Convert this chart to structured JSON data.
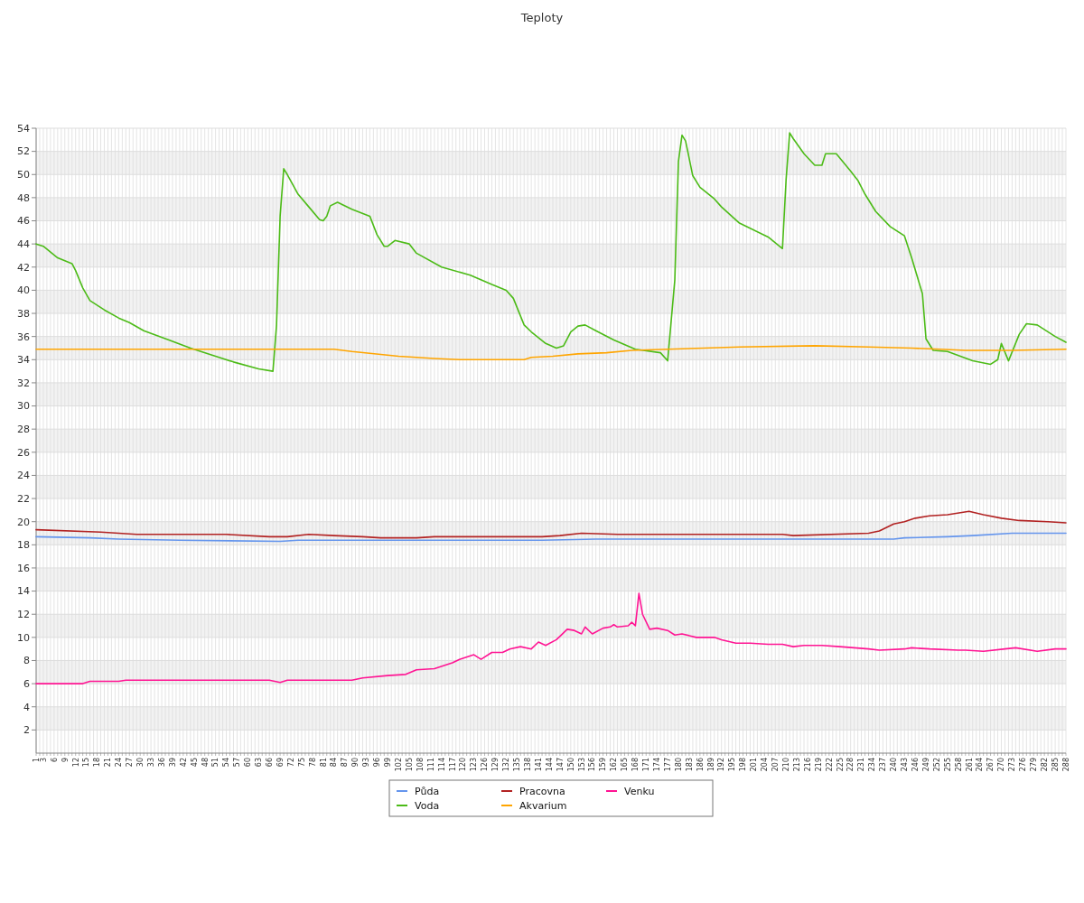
{
  "chart_data": {
    "type": "line",
    "title": "Teploty",
    "grid": true,
    "legend": "bottom",
    "xlim": [
      1,
      288
    ],
    "ylim": [
      0,
      54
    ],
    "yticks": [
      2,
      4,
      6,
      8,
      10,
      12,
      14,
      16,
      18,
      20,
      22,
      24,
      26,
      28,
      30,
      32,
      34,
      36,
      38,
      40,
      42,
      44,
      46,
      48,
      50,
      52,
      54
    ],
    "xticks": [
      1,
      {
        "value": 2,
        "label": null
      },
      3,
      {
        "value": 4,
        "label": null
      },
      {
        "value": 5,
        "label": null
      },
      6,
      {
        "value": 7,
        "label": null
      },
      {
        "value": 8,
        "label": null
      },
      9,
      {
        "value": 10,
        "label": null
      },
      {
        "value": 11,
        "label": null
      },
      12,
      {
        "value": 13,
        "label": null
      },
      {
        "value": 14,
        "label": null
      },
      15,
      {
        "value": 16,
        "label": null
      },
      {
        "value": 17,
        "label": null
      },
      18,
      {
        "value": 19,
        "label": null
      },
      {
        "value": 20,
        "label": null
      },
      21,
      {
        "value": 22,
        "label": null
      },
      {
        "value": 23,
        "label": null
      },
      24,
      {
        "value": 25,
        "label": null
      },
      {
        "value": 26,
        "label": null
      },
      27,
      {
        "value": 28,
        "label": null
      },
      {
        "value": 29,
        "label": null
      },
      30,
      {
        "value": 31,
        "label": null
      },
      {
        "value": 32,
        "label": null
      },
      33,
      {
        "value": 34,
        "label": null
      },
      {
        "value": 35,
        "label": null
      },
      36,
      {
        "value": 37,
        "label": null
      },
      {
        "value": 38,
        "label": null
      },
      39,
      {
        "value": 40,
        "label": null
      },
      {
        "value": 41,
        "label": null
      },
      42,
      {
        "value": 43,
        "label": null
      },
      {
        "value": 44,
        "label": null
      },
      45,
      {
        "value": 46,
        "label": null
      },
      {
        "value": 47,
        "label": null
      },
      48,
      {
        "value": 49,
        "label": null
      },
      {
        "value": 50,
        "label": null
      },
      51,
      {
        "value": 52,
        "label": null
      },
      {
        "value": 53,
        "label": null
      },
      54,
      {
        "value": 55,
        "label": null
      },
      {
        "value": 56,
        "label": null
      },
      57,
      {
        "value": 58,
        "label": null
      },
      {
        "value": 59,
        "label": null
      },
      60,
      {
        "value": 61,
        "label": null
      },
      {
        "value": 62,
        "label": null
      },
      63,
      {
        "value": 64,
        "label": null
      },
      {
        "value": 65,
        "label": null
      },
      66,
      {
        "value": 67,
        "label": null
      },
      {
        "value": 68,
        "label": null
      },
      69,
      {
        "value": 70,
        "label": null
      },
      {
        "value": 71,
        "label": null
      },
      72,
      {
        "value": 73,
        "label": null
      },
      {
        "value": 74,
        "label": null
      },
      75,
      {
        "value": 76,
        "label": null
      },
      {
        "value": 77,
        "label": null
      },
      78,
      {
        "value": 79,
        "label": null
      },
      {
        "value": 80,
        "label": null
      },
      81,
      {
        "value": 82,
        "label": null
      },
      {
        "value": 83,
        "label": null
      },
      84,
      {
        "value": 85,
        "label": null
      },
      {
        "value": 86,
        "label": null
      },
      87,
      {
        "value": 88,
        "label": null
      },
      {
        "value": 89,
        "label": null
      },
      90,
      {
        "value": 91,
        "label": null
      },
      {
        "value": 92,
        "label": null
      },
      93,
      {
        "value": 94,
        "label": null
      },
      {
        "value": 95,
        "label": null
      },
      96,
      {
        "value": 97,
        "label": null
      },
      {
        "value": 98,
        "label": null
      },
      99,
      {
        "value": 100,
        "label": null
      },
      {
        "value": 101,
        "label": null
      },
      102,
      {
        "value": 103,
        "label": null
      },
      {
        "value": 104,
        "label": null
      },
      105,
      {
        "value": 106,
        "label": null
      },
      {
        "value": 107,
        "label": null
      },
      108,
      {
        "value": 109,
        "label": null
      },
      {
        "value": 110,
        "label": null
      },
      111,
      {
        "value": 112,
        "label": null
      },
      {
        "value": 113,
        "label": null
      },
      114,
      {
        "value": 115,
        "label": null
      },
      {
        "value": 116,
        "label": null
      },
      117,
      {
        "value": 118,
        "label": null
      },
      {
        "value": 119,
        "label": null
      },
      120,
      {
        "value": 121,
        "label": null
      },
      {
        "value": 122,
        "label": null
      },
      123,
      {
        "value": 124,
        "label": null
      },
      {
        "value": 125,
        "label": null
      },
      126,
      {
        "value": 127,
        "label": null
      },
      {
        "value": 128,
        "label": null
      },
      129,
      {
        "value": 130,
        "label": null
      },
      {
        "value": 131,
        "label": null
      },
      132,
      {
        "value": 133,
        "label": null
      },
      {
        "value": 134,
        "label": null
      },
      135,
      {
        "value": 136,
        "label": null
      },
      {
        "value": 137,
        "label": null
      },
      138,
      {
        "value": 139,
        "label": null
      },
      {
        "value": 140,
        "label": null
      },
      141,
      {
        "value": 142,
        "label": null
      },
      {
        "value": 143,
        "label": null
      },
      144,
      {
        "value": 145,
        "label": null
      },
      {
        "value": 146,
        "label": null
      },
      147,
      {
        "value": 148,
        "label": null
      },
      {
        "value": 149,
        "label": null
      },
      150,
      {
        "value": 151,
        "label": null
      },
      {
        "value": 152,
        "label": null
      },
      153,
      {
        "value": 154,
        "label": null
      },
      {
        "value": 155,
        "label": null
      },
      156,
      {
        "value": 157,
        "label": null
      },
      {
        "value": 158,
        "label": null
      },
      159,
      {
        "value": 160,
        "label": null
      },
      {
        "value": 161,
        "label": null
      },
      162,
      {
        "value": 163,
        "label": null
      },
      {
        "value": 164,
        "label": null
      },
      165,
      {
        "value": 166,
        "label": null
      },
      {
        "value": 167,
        "label": null
      },
      168,
      {
        "value": 169,
        "label": null
      },
      {
        "value": 170,
        "label": null
      },
      171,
      {
        "value": 172,
        "label": null
      },
      {
        "value": 173,
        "label": null
      },
      174,
      {
        "value": 175,
        "label": null
      },
      {
        "value": 176,
        "label": null
      },
      177,
      {
        "value": 178,
        "label": null
      },
      {
        "value": 179,
        "label": null
      },
      180,
      {
        "value": 181,
        "label": null
      },
      {
        "value": 182,
        "label": null
      },
      183,
      {
        "value": 184,
        "label": null
      },
      {
        "value": 185,
        "label": null
      },
      186,
      {
        "value": 187,
        "label": null
      },
      {
        "value": 188,
        "label": null
      },
      189,
      {
        "value": 190,
        "label": null
      },
      {
        "value": 191,
        "label": null
      },
      192,
      {
        "value": 193,
        "label": null
      },
      {
        "value": 194,
        "label": null
      },
      195,
      {
        "value": 196,
        "label": null
      },
      {
        "value": 197,
        "label": null
      },
      198,
      {
        "value": 199,
        "label": null
      },
      {
        "value": 200,
        "label": null
      },
      201,
      {
        "value": 202,
        "label": null
      },
      {
        "value": 203,
        "label": null
      },
      204,
      {
        "value": 205,
        "label": null
      },
      {
        "value": 206,
        "label": null
      },
      207,
      {
        "value": 208,
        "label": null
      },
      {
        "value": 209,
        "label": null
      },
      210,
      {
        "value": 211,
        "label": null
      },
      {
        "value": 212,
        "label": null
      },
      213,
      {
        "value": 214,
        "label": null
      },
      {
        "value": 215,
        "label": null
      },
      216,
      {
        "value": 217,
        "label": null
      },
      {
        "value": 218,
        "label": null
      },
      219,
      {
        "value": 220,
        "label": null
      },
      {
        "value": 221,
        "label": null
      },
      222,
      {
        "value": 223,
        "label": null
      },
      {
        "value": 224,
        "label": null
      },
      225,
      {
        "value": 226,
        "label": null
      },
      {
        "value": 227,
        "label": null
      },
      228,
      {
        "value": 229,
        "label": null
      },
      {
        "value": 230,
        "label": null
      },
      231,
      {
        "value": 232,
        "label": null
      },
      {
        "value": 233,
        "label": null
      },
      234,
      {
        "value": 235,
        "label": null
      },
      {
        "value": 236,
        "label": null
      },
      237,
      {
        "value": 238,
        "label": null
      },
      {
        "value": 239,
        "label": null
      },
      240,
      {
        "value": 241,
        "label": null
      },
      {
        "value": 242,
        "label": null
      },
      243,
      {
        "value": 244,
        "label": null
      },
      {
        "value": 245,
        "label": null
      },
      246,
      {
        "value": 247,
        "label": null
      },
      {
        "value": 248,
        "label": null
      },
      249,
      {
        "value": 250,
        "label": null
      },
      {
        "value": 251,
        "label": null
      },
      252,
      {
        "value": 253,
        "label": null
      },
      {
        "value": 254,
        "label": null
      },
      255,
      {
        "value": 256,
        "label": null
      },
      {
        "value": 257,
        "label": null
      },
      258,
      {
        "value": 259,
        "label": null
      },
      {
        "value": 260,
        "label": null
      },
      261,
      {
        "value": 262,
        "label": null
      },
      {
        "value": 263,
        "label": null
      },
      264,
      {
        "value": 265,
        "label": null
      },
      {
        "value": 266,
        "label": null
      },
      267,
      {
        "value": 268,
        "label": null
      },
      {
        "value": 269,
        "label": null
      },
      270,
      {
        "value": 271,
        "label": null
      },
      {
        "value": 272,
        "label": null
      },
      273,
      {
        "value": 274,
        "label": null
      },
      {
        "value": 275,
        "label": null
      },
      276,
      {
        "value": 277,
        "label": null
      },
      {
        "value": 278,
        "label": null
      },
      279,
      {
        "value": 280,
        "label": null
      },
      {
        "value": 281,
        "label": null
      },
      282,
      {
        "value": 283,
        "label": null
      },
      {
        "value": 284,
        "label": null
      },
      285,
      {
        "value": 286,
        "label": null
      },
      {
        "value": 287,
        "label": null
      },
      288
    ],
    "series": [
      {
        "name": "Půda",
        "color": "#6495ed",
        "x": [
          1,
          16,
          24,
          41,
          69,
          74,
          142,
          157,
          240,
          243,
          255,
          262,
          273,
          288
        ],
        "values": [
          18.7,
          18.6,
          18.5,
          18.4,
          18.3,
          18.4,
          18.4,
          18.5,
          18.5,
          18.6,
          18.7,
          18.8,
          19.0,
          19.0
        ]
      },
      {
        "name": "Voda",
        "color": "#4cbb17",
        "x": [
          1,
          3,
          7,
          11,
          12,
          14,
          16,
          20,
          24,
          27,
          31,
          38,
          44,
          51,
          56,
          63,
          67,
          68,
          69,
          70,
          71,
          74,
          77,
          80,
          81,
          82,
          83,
          85,
          89,
          94,
          96,
          98,
          99,
          101,
          105,
          107,
          114,
          122,
          128,
          132,
          134,
          137,
          139,
          143,
          146,
          148,
          150,
          152,
          154,
          157,
          162,
          168,
          175,
          177,
          179,
          180,
          181,
          182,
          184,
          186,
          190,
          192,
          197,
          205,
          209,
          210,
          211,
          212,
          215,
          218,
          220,
          221,
          224,
          228,
          230,
          232,
          235,
          239,
          243,
          245,
          248,
          249,
          251,
          255,
          262,
          267,
          269,
          270,
          272,
          275,
          277,
          280,
          285,
          288
        ],
        "values": [
          44.0,
          43.8,
          42.8,
          42.3,
          41.7,
          40.2,
          39.1,
          38.3,
          37.6,
          37.2,
          36.5,
          35.7,
          35.0,
          34.3,
          33.8,
          33.2,
          33.0,
          37.0,
          46.4,
          50.5,
          50.0,
          48.3,
          47.2,
          46.1,
          46.0,
          46.4,
          47.3,
          47.6,
          47.0,
          46.4,
          44.8,
          43.8,
          43.8,
          44.3,
          44.0,
          43.2,
          42.0,
          41.3,
          40.5,
          40.0,
          39.3,
          37.0,
          36.4,
          35.4,
          35.0,
          35.2,
          36.4,
          36.9,
          37.0,
          36.5,
          35.7,
          34.9,
          34.6,
          33.9,
          40.9,
          51.1,
          53.4,
          52.9,
          49.9,
          48.9,
          47.9,
          47.2,
          45.8,
          44.6,
          43.6,
          49.5,
          53.6,
          53.1,
          51.8,
          50.8,
          50.8,
          51.8,
          51.8,
          50.3,
          49.5,
          48.3,
          46.8,
          45.5,
          44.7,
          42.8,
          39.7,
          35.8,
          34.8,
          34.7,
          33.9,
          33.6,
          34.0,
          35.4,
          33.9,
          36.2,
          37.1,
          37.0,
          36.0,
          35.5
        ]
      },
      {
        "name": "Pracovna",
        "color": "#b22222",
        "x": [
          1,
          19,
          29,
          54,
          66,
          71,
          77,
          84,
          92,
          97,
          107,
          112,
          142,
          147,
          153,
          163,
          167,
          182,
          209,
          212,
          233,
          236,
          240,
          243,
          246,
          250,
          255,
          261,
          265,
          270,
          275,
          283,
          288
        ],
        "values": [
          19.3,
          19.1,
          18.9,
          18.9,
          18.7,
          18.7,
          18.9,
          18.8,
          18.7,
          18.6,
          18.6,
          18.7,
          18.7,
          18.8,
          19.0,
          18.9,
          18.9,
          18.9,
          18.9,
          18.8,
          19.0,
          19.2,
          19.8,
          20.0,
          20.3,
          20.5,
          20.6,
          20.9,
          20.6,
          20.3,
          20.1,
          20.0,
          19.9
        ]
      },
      {
        "name": "Akvarium",
        "color": "#ffa500",
        "x": [
          1,
          84,
          89,
          102,
          112,
          119,
          137,
          139,
          145,
          152,
          160,
          167,
          177,
          187,
          197,
          218,
          233,
          245,
          253,
          260,
          273,
          288
        ],
        "values": [
          34.9,
          34.9,
          34.7,
          34.3,
          34.1,
          34.0,
          34.0,
          34.2,
          34.3,
          34.5,
          34.6,
          34.8,
          34.9,
          35.0,
          35.1,
          35.2,
          35.1,
          35.0,
          34.9,
          34.8,
          34.8,
          34.9
        ]
      },
      {
        "name": "Venku",
        "color": "#ff1493",
        "x": [
          1,
          14,
          16,
          24,
          26,
          66,
          69,
          71,
          89,
          92,
          99,
          104,
          107,
          112,
          117,
          119,
          123,
          125,
          128,
          131,
          133,
          136,
          139,
          141,
          143,
          146,
          147,
          149,
          151,
          153,
          154,
          156,
          159,
          161,
          162,
          163,
          166,
          167,
          168,
          169,
          170,
          172,
          174,
          177,
          179,
          181,
          185,
          190,
          192,
          196,
          200,
          205,
          209,
          212,
          215,
          220,
          225,
          233,
          236,
          243,
          245,
          250,
          258,
          260,
          265,
          271,
          274,
          280,
          285,
          288
        ],
        "values": [
          6.0,
          6.0,
          6.2,
          6.2,
          6.3,
          6.3,
          6.1,
          6.3,
          6.3,
          6.5,
          6.7,
          6.8,
          7.2,
          7.3,
          7.8,
          8.1,
          8.5,
          8.1,
          8.7,
          8.7,
          9.0,
          9.2,
          9.0,
          9.6,
          9.3,
          9.8,
          10.1,
          10.7,
          10.6,
          10.3,
          10.9,
          10.3,
          10.8,
          10.9,
          11.1,
          10.9,
          11.0,
          11.3,
          11.0,
          13.8,
          12.0,
          10.7,
          10.8,
          10.6,
          10.2,
          10.3,
          10.0,
          10.0,
          9.8,
          9.5,
          9.5,
          9.4,
          9.4,
          9.2,
          9.3,
          9.3,
          9.2,
          9.0,
          8.9,
          9.0,
          9.1,
          9.0,
          8.9,
          8.9,
          8.8,
          9.0,
          9.1,
          8.8,
          9.0,
          9.0
        ]
      }
    ]
  }
}
